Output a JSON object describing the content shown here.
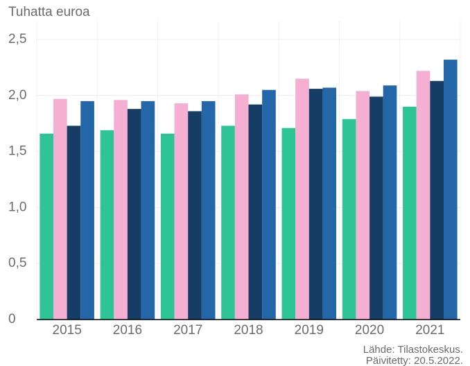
{
  "chart_data": {
    "type": "bar",
    "y_label": "Tuhatta euroa",
    "source": "Lähde: Tilastokeskus.",
    "updated": "Päivitetty: 20.5.2022.",
    "categories": [
      "2015",
      "2016",
      "2017",
      "2018",
      "2019",
      "2020",
      "2021"
    ],
    "series": [
      {
        "color": "#2ec495",
        "values": [
          1.66,
          1.69,
          1.66,
          1.73,
          1.71,
          1.79,
          1.9
        ]
      },
      {
        "color": "#f4afd2",
        "values": [
          1.97,
          1.96,
          1.93,
          2.01,
          2.15,
          2.04,
          2.22
        ]
      },
      {
        "color": "#163d66",
        "values": [
          1.73,
          1.88,
          1.86,
          1.92,
          2.06,
          1.99,
          2.13
        ]
      },
      {
        "color": "#2467a8",
        "values": [
          1.95,
          1.95,
          1.95,
          2.05,
          2.07,
          2.09,
          2.32
        ]
      }
    ],
    "ylim": [
      0,
      2.5
    ],
    "yticks": [
      0,
      {
        "value": 0.5,
        "label": "0,5"
      },
      {
        "value": 1,
        "label": "1,0"
      },
      {
        "value": 1.5,
        "label": "1,5"
      },
      {
        "value": 2,
        "label": "2,0"
      },
      {
        "value": 2.5,
        "label": "2,5"
      }
    ],
    "grid": true
  }
}
